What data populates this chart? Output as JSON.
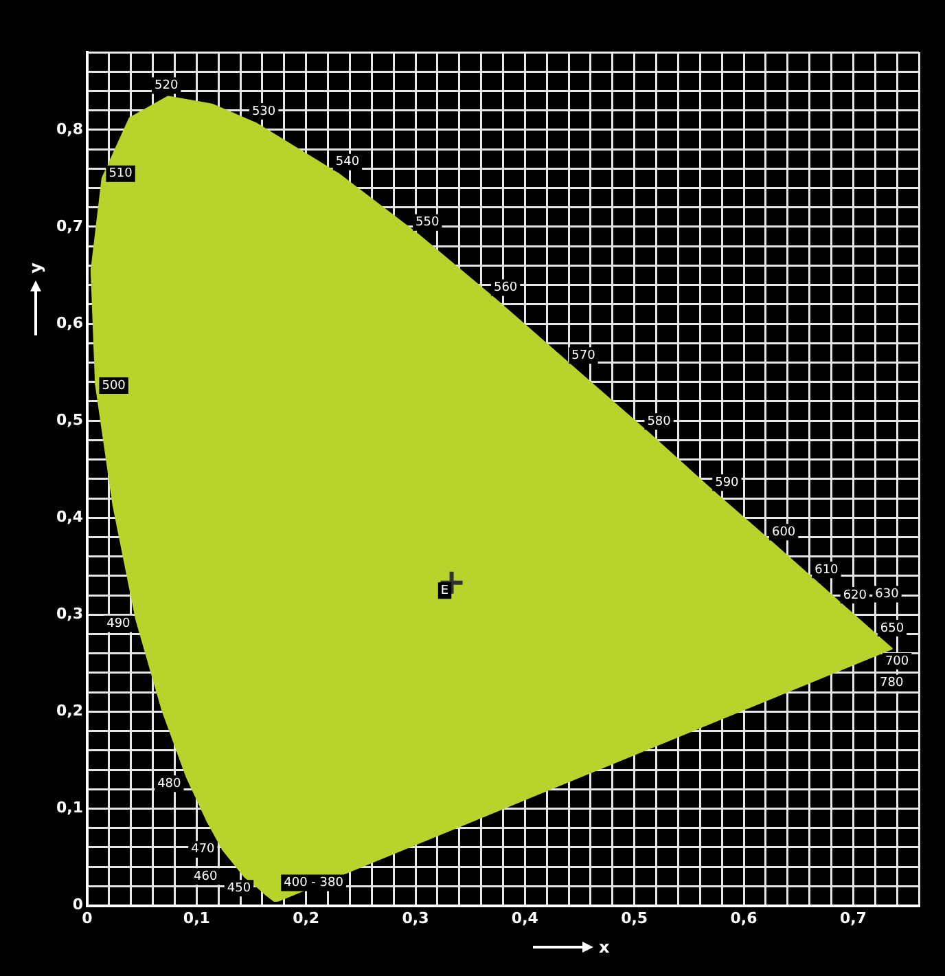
{
  "chart_data": {
    "type": "area",
    "xlabel": "x",
    "ylabel": "y",
    "grid": true,
    "legend": false,
    "xlim": [
      0,
      0.76
    ],
    "ylim": [
      0,
      0.88
    ],
    "xticks": [
      {
        "value": 0,
        "label": "0"
      },
      {
        "value": 0.02,
        "label": null
      },
      {
        "value": 0.04,
        "label": null
      },
      {
        "value": 0.06,
        "label": null
      },
      {
        "value": 0.08,
        "label": null
      },
      {
        "value": 0.1,
        "label": "0,1"
      },
      {
        "value": 0.12,
        "label": null
      },
      {
        "value": 0.14,
        "label": null
      },
      {
        "value": 0.16,
        "label": null
      },
      {
        "value": 0.18,
        "label": null
      },
      {
        "value": 0.2,
        "label": "0,2"
      },
      {
        "value": 0.22,
        "label": null
      },
      {
        "value": 0.24,
        "label": null
      },
      {
        "value": 0.26,
        "label": null
      },
      {
        "value": 0.28,
        "label": null
      },
      {
        "value": 0.3,
        "label": "0,3"
      },
      {
        "value": 0.32,
        "label": null
      },
      {
        "value": 0.34,
        "label": null
      },
      {
        "value": 0.36,
        "label": null
      },
      {
        "value": 0.38,
        "label": null
      },
      {
        "value": 0.4,
        "label": "0,4"
      },
      {
        "value": 0.42,
        "label": null
      },
      {
        "value": 0.44,
        "label": null
      },
      {
        "value": 0.46,
        "label": null
      },
      {
        "value": 0.48,
        "label": null
      },
      {
        "value": 0.5,
        "label": "0,5"
      },
      {
        "value": 0.52,
        "label": null
      },
      {
        "value": 0.54,
        "label": null
      },
      {
        "value": 0.56,
        "label": null
      },
      {
        "value": 0.58,
        "label": null
      },
      {
        "value": 0.6,
        "label": "0,6"
      },
      {
        "value": 0.62,
        "label": null
      },
      {
        "value": 0.64,
        "label": null
      },
      {
        "value": 0.66,
        "label": null
      },
      {
        "value": 0.68,
        "label": null
      },
      {
        "value": 0.7,
        "label": "0,7"
      },
      {
        "value": 0.72,
        "label": null
      },
      {
        "value": 0.74,
        "label": null
      },
      {
        "value": 0.76,
        "label": null
      }
    ],
    "yticks": [
      {
        "value": 0,
        "label": "0"
      },
      {
        "value": 0.02,
        "label": null
      },
      {
        "value": 0.04,
        "label": null
      },
      {
        "value": 0.06,
        "label": null
      },
      {
        "value": 0.08,
        "label": null
      },
      {
        "value": 0.1,
        "label": "0,1"
      },
      {
        "value": 0.12,
        "label": null
      },
      {
        "value": 0.14,
        "label": null
      },
      {
        "value": 0.16,
        "label": null
      },
      {
        "value": 0.18,
        "label": null
      },
      {
        "value": 0.2,
        "label": "0,2"
      },
      {
        "value": 0.22,
        "label": null
      },
      {
        "value": 0.24,
        "label": null
      },
      {
        "value": 0.26,
        "label": null
      },
      {
        "value": 0.28,
        "label": null
      },
      {
        "value": 0.3,
        "label": "0,3"
      },
      {
        "value": 0.32,
        "label": null
      },
      {
        "value": 0.34,
        "label": null
      },
      {
        "value": 0.36,
        "label": null
      },
      {
        "value": 0.38,
        "label": null
      },
      {
        "value": 0.4,
        "label": "0,4"
      },
      {
        "value": 0.42,
        "label": null
      },
      {
        "value": 0.44,
        "label": null
      },
      {
        "value": 0.46,
        "label": null
      },
      {
        "value": 0.48,
        "label": null
      },
      {
        "value": 0.5,
        "label": "0,5"
      },
      {
        "value": 0.52,
        "label": null
      },
      {
        "value": 0.54,
        "label": null
      },
      {
        "value": 0.56,
        "label": null
      },
      {
        "value": 0.58,
        "label": null
      },
      {
        "value": 0.6,
        "label": "0,6"
      },
      {
        "value": 0.62,
        "label": null
      },
      {
        "value": 0.64,
        "label": null
      },
      {
        "value": 0.66,
        "label": null
      },
      {
        "value": 0.68,
        "label": null
      },
      {
        "value": 0.7,
        "label": "0,7"
      },
      {
        "value": 0.72,
        "label": null
      },
      {
        "value": 0.74,
        "label": null
      },
      {
        "value": 0.76,
        "label": null
      },
      {
        "value": 0.78,
        "label": null
      },
      {
        "value": 0.8,
        "label": "0,8"
      },
      {
        "value": 0.82,
        "label": null
      },
      {
        "value": 0.84,
        "label": null
      },
      {
        "value": 0.86,
        "label": null
      },
      {
        "value": 0.88,
        "label": null
      }
    ],
    "series": [
      {
        "color": "#b8d42c",
        "marker": "none",
        "x": [
          0.174,
          0.171,
          0.164,
          0.157,
          0.144,
          0.124,
          0.11,
          0.091,
          0.069,
          0.045,
          0.024,
          0.008,
          0.004,
          0.014,
          0.039,
          0.074,
          0.114,
          0.155,
          0.23,
          0.302,
          0.373,
          0.444,
          0.513,
          0.575,
          0.627,
          0.666,
          0.692,
          0.708,
          0.719,
          0.726,
          0.735,
          0.735,
          0.174
        ],
        "values": [
          0.005,
          0.005,
          0.011,
          0.018,
          0.03,
          0.058,
          0.087,
          0.133,
          0.201,
          0.295,
          0.413,
          0.538,
          0.655,
          0.75,
          0.812,
          0.834,
          0.826,
          0.806,
          0.754,
          0.692,
          0.625,
          0.555,
          0.487,
          0.424,
          0.373,
          0.334,
          0.308,
          0.292,
          0.281,
          0.274,
          0.265,
          0.265,
          0.005
        ]
      },
      {
        "type": "scatter",
        "color": "#333333",
        "marker": "cross",
        "x": [
          0.333
        ],
        "values": [
          0.333
        ]
      }
    ],
    "annotations": [
      {
        "text": "400 - 380",
        "x": 0.174,
        "y": 0.005
      },
      {
        "text": "450",
        "x": 0.157,
        "y": 0.018
      },
      {
        "text": "460",
        "x": 0.144,
        "y": 0.03
      },
      {
        "text": "470",
        "x": 0.124,
        "y": 0.058
      },
      {
        "text": "480",
        "x": 0.091,
        "y": 0.133
      },
      {
        "text": "490",
        "x": 0.045,
        "y": 0.295
      },
      {
        "text": "500",
        "x": 0.008,
        "y": 0.538
      },
      {
        "text": "510",
        "x": 0.014,
        "y": 0.75
      },
      {
        "text": "520",
        "x": 0.074,
        "y": 0.834
      },
      {
        "text": "530",
        "x": 0.155,
        "y": 0.806
      },
      {
        "text": "540",
        "x": 0.23,
        "y": 0.754
      },
      {
        "text": "550",
        "x": 0.302,
        "y": 0.692
      },
      {
        "text": "560",
        "x": 0.373,
        "y": 0.625
      },
      {
        "text": "570",
        "x": 0.444,
        "y": 0.555
      },
      {
        "text": "580",
        "x": 0.513,
        "y": 0.487
      },
      {
        "text": "590",
        "x": 0.575,
        "y": 0.424
      },
      {
        "text": "600",
        "x": 0.627,
        "y": 0.373
      },
      {
        "text": "610",
        "x": 0.666,
        "y": 0.334
      },
      {
        "text": "620",
        "x": 0.692,
        "y": 0.308
      },
      {
        "text": "630",
        "x": 0.708,
        "y": 0.292
      },
      {
        "text": "650",
        "x": 0.726,
        "y": 0.274
      },
      {
        "text": "700",
        "x": 0.735,
        "y": 0.265
      },
      {
        "text": "780",
        "x": 0.735,
        "y": 0.265
      },
      {
        "text": "E",
        "x": 0.333,
        "y": 0.333
      }
    ]
  }
}
